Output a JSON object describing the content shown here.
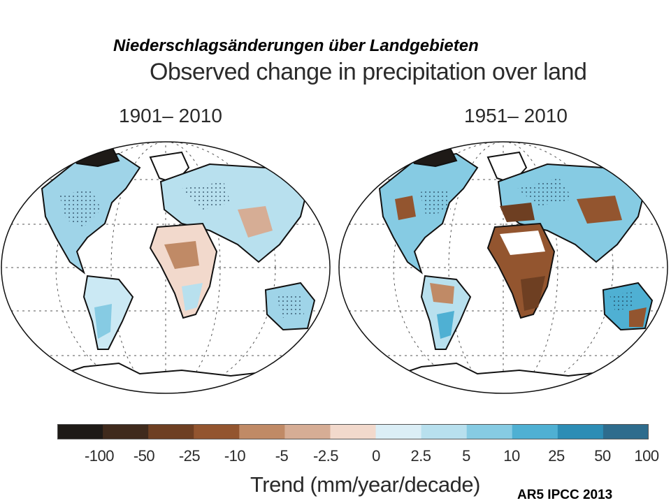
{
  "header": {
    "title_de": "Niederschlagsänderungen über Landgebieten",
    "title_en": "Observed change in precipitation over land"
  },
  "maps": [
    {
      "period": "1901– 2010"
    },
    {
      "period": "1951– 2010"
    }
  ],
  "colorbar": {
    "ticks": [
      "-100",
      "-50",
      "-25",
      "-10",
      "-5",
      "-2.5",
      "0",
      "2.5",
      "5",
      "10",
      "25",
      "50",
      "100"
    ],
    "colors": [
      "#1e1a17",
      "#3f2a1c",
      "#6e3f22",
      "#93552f",
      "#c08a66",
      "#d6ad95",
      "#f2d9cc",
      "#dbeef6",
      "#b8e0ee",
      "#86cbe3",
      "#4fb0d3",
      "#2d8db5",
      "#2e6c8d"
    ],
    "label": "Trend (mm/year/decade)"
  },
  "footer": {
    "source": "AR5 IPCC 2013"
  }
}
